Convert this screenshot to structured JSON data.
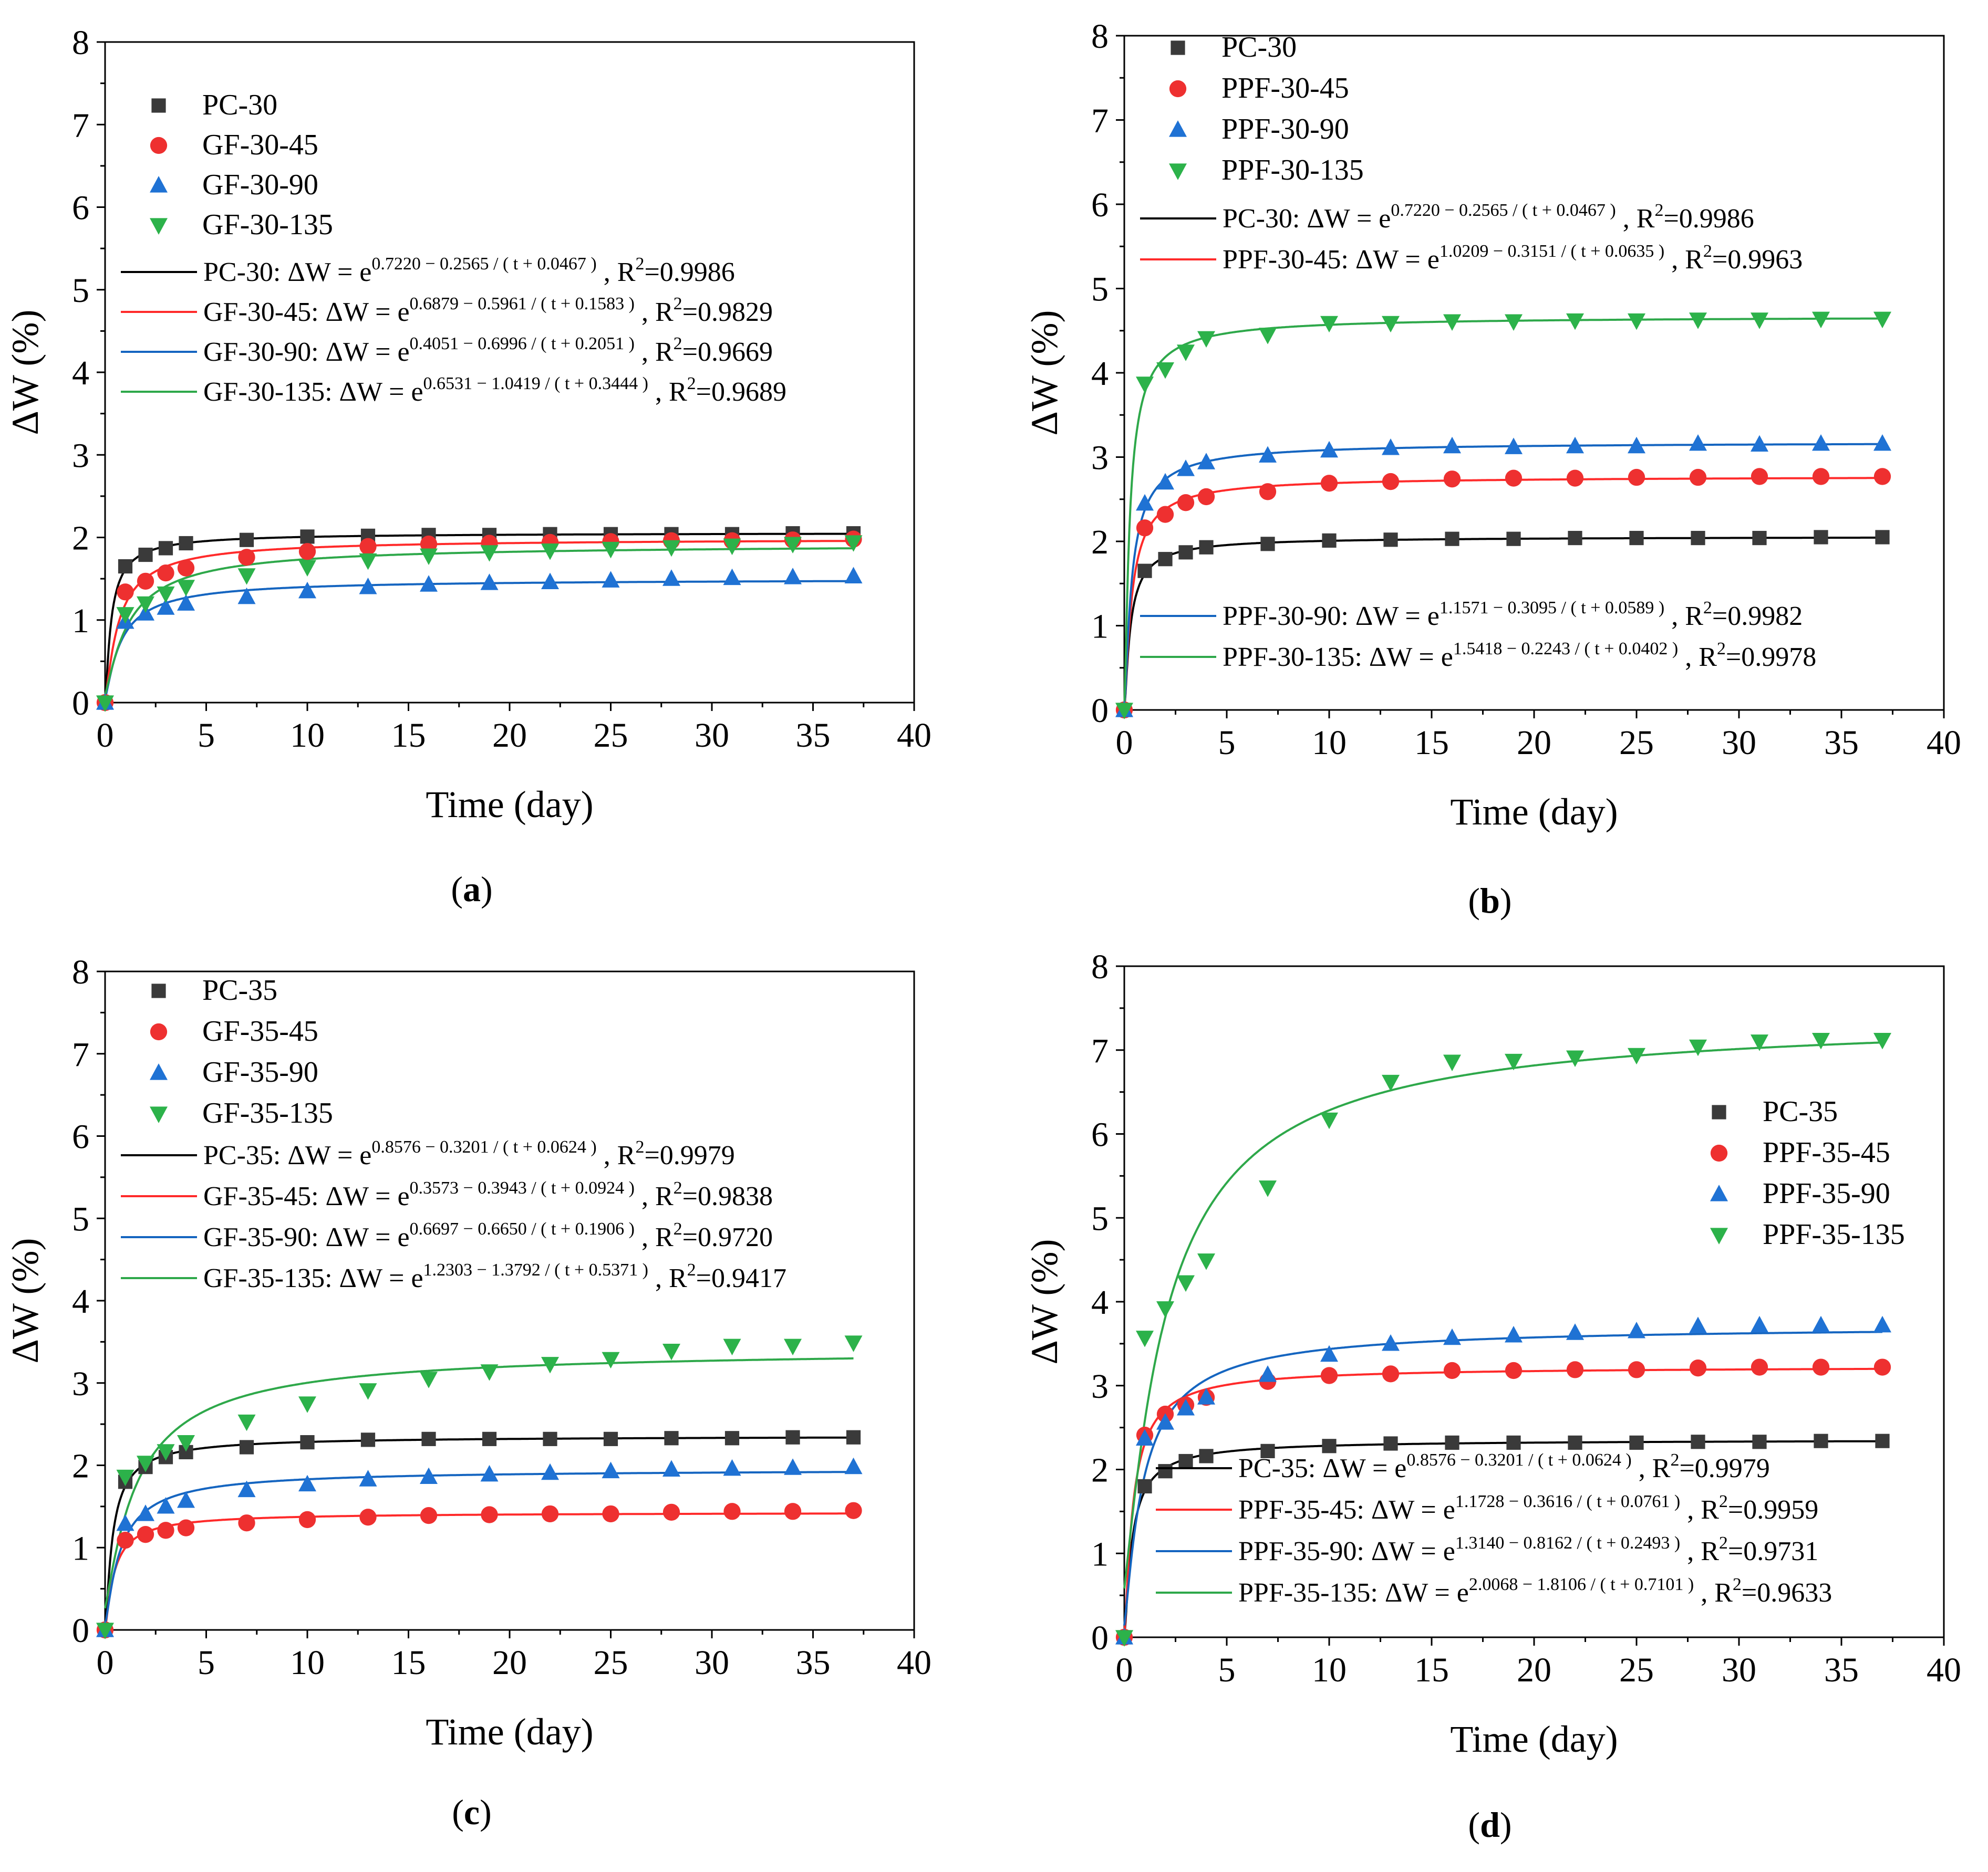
{
  "colors": {
    "PC": "#3a3a3a",
    "s45": "#ee3030",
    "s90": "#1f72d4",
    "s135": "#2cb24a",
    "fit_PC": "#000000",
    "fit_45": "#ff2a2a",
    "fit_90": "#1565c0",
    "fit_135": "#2ea84a"
  },
  "chart_data": [
    {
      "id": "a",
      "type": "scatter",
      "caption_open": "(",
      "caption_letter": "a",
      "caption_close": ")",
      "xlabel": "Time (day)",
      "ylabel": "ΔW (%)",
      "xlim": [
        0,
        40
      ],
      "ylim": [
        0,
        8
      ],
      "xticks": [
        0,
        5,
        10,
        15,
        20,
        25,
        30,
        35,
        40
      ],
      "yticks": [
        0,
        1,
        2,
        3,
        4,
        5,
        6,
        7,
        8
      ],
      "legend_placement": "top-left",
      "x": [
        0,
        1,
        2,
        3,
        4,
        7,
        10,
        13,
        16,
        19,
        22,
        25,
        28,
        31,
        34,
        37
      ],
      "series": [
        {
          "name": "PC-30",
          "marker": "square",
          "color_key": "PC",
          "values": [
            0,
            1.65,
            1.79,
            1.87,
            1.93,
            1.97,
            2.01,
            2.02,
            2.03,
            2.03,
            2.04,
            2.04,
            2.04,
            2.04,
            2.05,
            2.05
          ]
        },
        {
          "name": "GF-30-45",
          "marker": "circle",
          "color_key": "s45",
          "values": [
            0,
            1.34,
            1.47,
            1.57,
            1.63,
            1.76,
            1.83,
            1.89,
            1.92,
            1.93,
            1.94,
            1.95,
            1.96,
            1.96,
            1.97,
            1.98
          ]
        },
        {
          "name": "GF-30-90",
          "marker": "triangle-up",
          "color_key": "s90",
          "values": [
            0,
            0.98,
            1.08,
            1.15,
            1.2,
            1.28,
            1.35,
            1.4,
            1.43,
            1.45,
            1.46,
            1.48,
            1.5,
            1.51,
            1.52,
            1.53
          ]
        },
        {
          "name": "GF-30-135",
          "marker": "triangle-down",
          "color_key": "s135",
          "values": [
            0,
            1.07,
            1.2,
            1.32,
            1.4,
            1.54,
            1.64,
            1.72,
            1.78,
            1.82,
            1.84,
            1.86,
            1.88,
            1.9,
            1.92,
            1.94
          ]
        }
      ],
      "fits": [
        {
          "label": "PC-30: ΔW = e",
          "sup": "0.7220 − 0.2565 / ( t + 0.0467 )",
          "r2_prefix": " , R",
          "r2_sup": "2",
          "r2_value": "=0.9986",
          "a": 0.722,
          "b": 0.2565,
          "c": 0.0467,
          "color_key": "fit_PC"
        },
        {
          "label": "GF-30-45: ΔW = e",
          "sup": "0.6879 − 0.5961 / ( t + 0.1583 )",
          "r2_prefix": " , R",
          "r2_sup": "2",
          "r2_value": "=0.9829",
          "a": 0.6879,
          "b": 0.5961,
          "c": 0.1583,
          "color_key": "fit_45"
        },
        {
          "label": "GF-30-90: ΔW = e",
          "sup": "0.4051 − 0.6996 / ( t + 0.2051 )",
          "r2_prefix": " , R",
          "r2_sup": "2",
          "r2_value": "=0.9669",
          "a": 0.4051,
          "b": 0.6996,
          "c": 0.2051,
          "color_key": "fit_90"
        },
        {
          "label": "GF-30-135: ΔW = e",
          "sup": "0.6531 − 1.0419 / ( t + 0.3444 )",
          "r2_prefix": " , R",
          "r2_sup": "2",
          "r2_value": "=0.9689",
          "a": 0.6531,
          "b": 1.0419,
          "c": 0.3444,
          "color_key": "fit_135"
        }
      ]
    },
    {
      "id": "b",
      "type": "scatter",
      "caption_open": "(",
      "caption_letter": "b",
      "caption_close": ")",
      "xlabel": "Time (day)",
      "ylabel": "ΔW (%)",
      "xlim": [
        0,
        40
      ],
      "ylim": [
        0,
        8
      ],
      "xticks": [
        0,
        5,
        10,
        15,
        20,
        25,
        30,
        35,
        40
      ],
      "yticks": [
        0,
        1,
        2,
        3,
        4,
        5,
        6,
        7,
        8
      ],
      "legend_placement": "top-left, fit entries split (lower-left)",
      "x": [
        0,
        1,
        2,
        3,
        4,
        7,
        10,
        13,
        16,
        19,
        22,
        25,
        28,
        31,
        34,
        37
      ],
      "series": [
        {
          "name": "PC-30",
          "marker": "square",
          "color_key": "PC",
          "values": [
            0,
            1.65,
            1.79,
            1.87,
            1.93,
            1.97,
            2.01,
            2.02,
            2.03,
            2.03,
            2.04,
            2.04,
            2.04,
            2.04,
            2.05,
            2.05
          ]
        },
        {
          "name": "PPF-30-45",
          "marker": "circle",
          "color_key": "s45",
          "values": [
            0,
            2.16,
            2.32,
            2.46,
            2.53,
            2.59,
            2.69,
            2.71,
            2.74,
            2.75,
            2.75,
            2.76,
            2.76,
            2.77,
            2.77,
            2.77
          ]
        },
        {
          "name": "PPF-30-90",
          "marker": "triangle-up",
          "color_key": "s90",
          "values": [
            0,
            2.45,
            2.7,
            2.86,
            2.94,
            3.02,
            3.08,
            3.11,
            3.13,
            3.12,
            3.13,
            3.13,
            3.16,
            3.15,
            3.16,
            3.16
          ]
        },
        {
          "name": "PPF-30-135",
          "marker": "triangle-down",
          "color_key": "s135",
          "values": [
            0,
            3.87,
            4.04,
            4.25,
            4.41,
            4.45,
            4.59,
            4.59,
            4.61,
            4.61,
            4.62,
            4.62,
            4.63,
            4.63,
            4.64,
            4.64
          ]
        }
      ],
      "fits": [
        {
          "label": "PC-30: ΔW = e",
          "sup": "0.7220 − 0.2565 / ( t + 0.0467 )",
          "r2_prefix": " , R",
          "r2_sup": "2",
          "r2_value": "=0.9986",
          "a": 0.722,
          "b": 0.2565,
          "c": 0.0467,
          "color_key": "fit_PC"
        },
        {
          "label": "PPF-30-45: ΔW = e",
          "sup": "1.0209 − 0.3151 / ( t + 0.0635 )",
          "r2_prefix": " , R",
          "r2_sup": "2",
          "r2_value": "=0.9963",
          "a": 1.0209,
          "b": 0.3151,
          "c": 0.0635,
          "color_key": "fit_45"
        },
        {
          "label": "PPF-30-90: ΔW = e",
          "sup": "1.1571 − 0.3095 / ( t + 0.0589 )",
          "r2_prefix": " , R",
          "r2_sup": "2",
          "r2_value": "=0.9982",
          "a": 1.1571,
          "b": 0.3095,
          "c": 0.0589,
          "color_key": "fit_90"
        },
        {
          "label": "PPF-30-135: ΔW = e",
          "sup": "1.5418 − 0.2243 / ( t + 0.0402 )",
          "r2_prefix": " , R",
          "r2_sup": "2",
          "r2_value": "=0.9978",
          "a": 1.5418,
          "b": 0.2243,
          "c": 0.0402,
          "color_key": "fit_135"
        }
      ]
    },
    {
      "id": "c",
      "type": "scatter",
      "caption_open": "(",
      "caption_letter": "c",
      "caption_close": ")",
      "xlabel": "Time (day)",
      "ylabel": "ΔW (%)",
      "xlim": [
        0,
        40
      ],
      "ylim": [
        0,
        8
      ],
      "xticks": [
        0,
        5,
        10,
        15,
        20,
        25,
        30,
        35,
        40
      ],
      "yticks": [
        0,
        1,
        2,
        3,
        4,
        5,
        6,
        7,
        8
      ],
      "legend_placement": "top-left",
      "x": [
        0,
        1,
        2,
        3,
        4,
        7,
        10,
        13,
        16,
        19,
        22,
        25,
        28,
        31,
        34,
        37
      ],
      "series": [
        {
          "name": "PC-35",
          "marker": "square",
          "color_key": "PC",
          "values": [
            0,
            1.8,
            1.98,
            2.1,
            2.16,
            2.22,
            2.28,
            2.31,
            2.32,
            2.32,
            2.32,
            2.32,
            2.33,
            2.33,
            2.34,
            2.34
          ]
        },
        {
          "name": "GF-35-45",
          "marker": "circle",
          "color_key": "s45",
          "values": [
            0,
            1.09,
            1.16,
            1.21,
            1.24,
            1.3,
            1.34,
            1.37,
            1.39,
            1.4,
            1.41,
            1.41,
            1.43,
            1.44,
            1.44,
            1.45
          ]
        },
        {
          "name": "GF-35-90",
          "marker": "triangle-up",
          "color_key": "s90",
          "values": [
            0,
            1.29,
            1.41,
            1.5,
            1.57,
            1.7,
            1.77,
            1.83,
            1.86,
            1.89,
            1.91,
            1.93,
            1.95,
            1.96,
            1.97,
            1.98
          ]
        },
        {
          "name": "GF-35-135",
          "marker": "triangle-down",
          "color_key": "s135",
          "values": [
            0,
            1.86,
            2.03,
            2.17,
            2.28,
            2.53,
            2.75,
            2.91,
            3.05,
            3.14,
            3.23,
            3.29,
            3.39,
            3.45,
            3.45,
            3.49
          ]
        }
      ],
      "fits": [
        {
          "label": "PC-35: ΔW = e",
          "sup": "0.8576 − 0.3201 / ( t + 0.0624 )",
          "r2_prefix": " , R",
          "r2_sup": "2",
          "r2_value": "=0.9979",
          "a": 0.8576,
          "b": 0.3201,
          "c": 0.0624,
          "color_key": "fit_PC"
        },
        {
          "label": "GF-35-45: ΔW = e",
          "sup": "0.3573 − 0.3943 / ( t + 0.0924 )",
          "r2_prefix": " , R",
          "r2_sup": "2",
          "r2_value": "=0.9838",
          "a": 0.3573,
          "b": 0.3943,
          "c": 0.0924,
          "color_key": "fit_45"
        },
        {
          "label": "GF-35-90: ΔW = e",
          "sup": "0.6697 − 0.6650 / ( t + 0.1906 )",
          "r2_prefix": " , R",
          "r2_sup": "2",
          "r2_value": "=0.9720",
          "a": 0.6697,
          "b": 0.665,
          "c": 0.1906,
          "color_key": "fit_90"
        },
        {
          "label": "GF-35-135: ΔW = e",
          "sup": "1.2303 − 1.3792 / ( t + 0.5371 )",
          "r2_prefix": " , R",
          "r2_sup": "2",
          "r2_value": "=0.9417",
          "a": 1.2303,
          "b": 1.3792,
          "c": 0.5371,
          "color_key": "fit_135"
        }
      ]
    },
    {
      "id": "d",
      "type": "scatter",
      "caption_open": "(",
      "caption_letter": "d",
      "caption_close": ")",
      "xlabel": "Time (day)",
      "ylabel": "ΔW (%)",
      "xlim": [
        0,
        40
      ],
      "ylim": [
        0,
        8
      ],
      "xticks": [
        0,
        5,
        10,
        15,
        20,
        25,
        30,
        35,
        40
      ],
      "yticks": [
        0,
        1,
        2,
        3,
        4,
        5,
        6,
        7,
        8
      ],
      "legend_placement": "center-right (markers), bottom-right (fits)",
      "x": [
        0,
        1,
        2,
        3,
        4,
        7,
        10,
        13,
        16,
        19,
        22,
        25,
        28,
        31,
        34,
        37
      ],
      "series": [
        {
          "name": "PC-35",
          "marker": "square",
          "color_key": "PC",
          "values": [
            0,
            1.8,
            1.98,
            2.1,
            2.16,
            2.22,
            2.28,
            2.31,
            2.32,
            2.32,
            2.32,
            2.32,
            2.33,
            2.33,
            2.34,
            2.34
          ]
        },
        {
          "name": "PPF-35-45",
          "marker": "circle",
          "color_key": "s45",
          "values": [
            0,
            2.41,
            2.66,
            2.77,
            2.86,
            3.05,
            3.12,
            3.14,
            3.18,
            3.18,
            3.19,
            3.19,
            3.21,
            3.22,
            3.22,
            3.22
          ]
        },
        {
          "name": "PPF-35-90",
          "marker": "triangle-up",
          "color_key": "s90",
          "values": [
            0,
            2.37,
            2.56,
            2.73,
            2.86,
            3.13,
            3.37,
            3.5,
            3.57,
            3.6,
            3.63,
            3.65,
            3.71,
            3.72,
            3.72,
            3.72
          ]
        },
        {
          "name": "PPF-35-135",
          "marker": "triangle-down",
          "color_key": "s135",
          "values": [
            0,
            3.57,
            3.92,
            4.23,
            4.49,
            5.36,
            6.17,
            6.62,
            6.86,
            6.87,
            6.91,
            6.94,
            7.04,
            7.1,
            7.12,
            7.12
          ]
        }
      ],
      "fits": [
        {
          "label": "PC-35: ΔW = e",
          "sup": "0.8576 − 0.3201 / ( t + 0.0624 )",
          "r2_prefix": " , R",
          "r2_sup": "2",
          "r2_value": "=0.9979",
          "a": 0.8576,
          "b": 0.3201,
          "c": 0.0624,
          "color_key": "fit_PC"
        },
        {
          "label": "PPF-35-45: ΔW = e",
          "sup": "1.1728 − 0.3616 / ( t + 0.0761 )",
          "r2_prefix": " , R",
          "r2_sup": "2",
          "r2_value": "=0.9959",
          "a": 1.1728,
          "b": 0.3616,
          "c": 0.0761,
          "color_key": "fit_45"
        },
        {
          "label": "PPF-35-90: ΔW = e",
          "sup": "1.3140 − 0.8162 / ( t + 0.2493 )",
          "r2_prefix": " , R",
          "r2_sup": "2",
          "r2_value": "=0.9731",
          "a": 1.314,
          "b": 0.8162,
          "c": 0.2493,
          "color_key": "fit_90"
        },
        {
          "label": "PPF-35-135: ΔW = e",
          "sup": "2.0068 − 1.8106 / ( t + 0.7101 )",
          "r2_prefix": " , R",
          "r2_sup": "2",
          "r2_value": "=0.9633",
          "a": 2.0068,
          "b": 1.8106,
          "c": 0.7101,
          "color_key": "fit_135"
        }
      ]
    }
  ]
}
